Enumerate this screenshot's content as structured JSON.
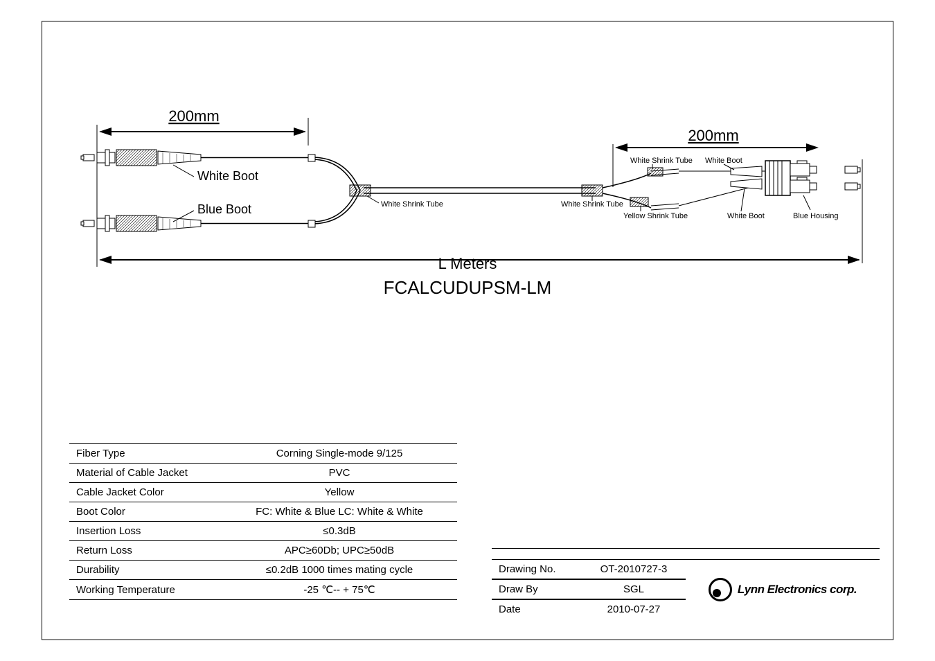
{
  "diagram": {
    "left_dim": "200mm",
    "right_dim": "200mm",
    "white_boot": "White Boot",
    "blue_boot": "Blue Boot",
    "white_shrink_tube": "White Shrink Tube",
    "yellow_shrink_tube": "Yellow Shrink Tube",
    "blue_housing": "Blue Housing",
    "l_meters": "L Meters",
    "part_number": "FCALCUDUPSM-LM",
    "colors": {
      "line": "#000000",
      "bg": "#ffffff",
      "dim_text": "#000000"
    },
    "font_sizes": {
      "dim": 22,
      "label_lg": 18,
      "label_sm": 11,
      "part": 26,
      "lmeters": 22
    }
  },
  "specs": {
    "rows": [
      {
        "label": "Fiber Type",
        "value": "Corning Single-mode 9/125"
      },
      {
        "label": "Material of Cable Jacket",
        "value": "PVC"
      },
      {
        "label": "Cable Jacket Color",
        "value": "Yellow"
      },
      {
        "label": "Boot Color",
        "value": "FC: White & Blue   LC: White & White"
      },
      {
        "label": "Insertion Loss",
        "value": "≤0.3dB"
      },
      {
        "label": "Return Loss",
        "value": "APC≥60Db; UPC≥50dB"
      },
      {
        "label": "Durability",
        "value": "≤0.2dB 1000 times mating cycle"
      },
      {
        "label": "Working Temperature",
        "value": "-25 ℃-- + 75℃"
      }
    ]
  },
  "titleblock": {
    "rows": [
      {
        "label": "Drawing No.",
        "value": "OT-2010727-3"
      },
      {
        "label": "Draw By",
        "value": "SGL"
      },
      {
        "label": "Date",
        "value": "2010-07-27"
      }
    ],
    "company": "Lynn Electronics corp."
  }
}
